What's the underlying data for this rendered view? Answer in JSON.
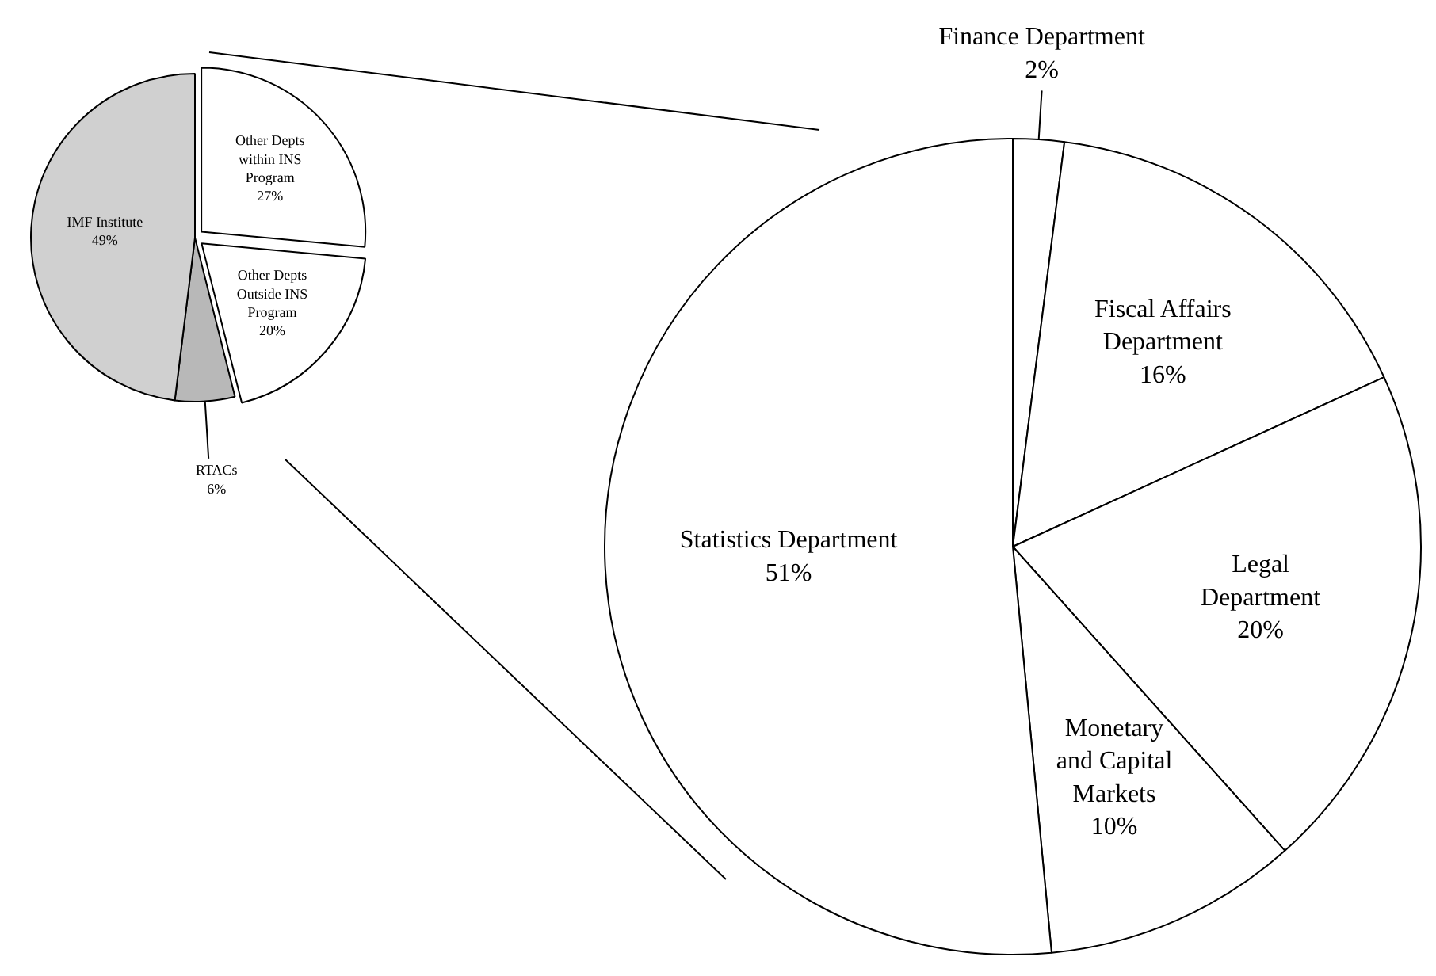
{
  "chart_data": [
    {
      "type": "pie",
      "categories": [
        "Other Depts within INS Program",
        "Other Depts Outside INS Program",
        "RTACs",
        "IMF Institute"
      ],
      "values": [
        27,
        20,
        6,
        49
      ],
      "value_labels": [
        "27%",
        "20%",
        "6%",
        "49%"
      ],
      "colors": [
        "#ffffff",
        "#ffffff",
        "#b8b8b8",
        "#d0d0d0"
      ]
    },
    {
      "type": "pie",
      "categories": [
        "Finance Department",
        "Fiscal Affairs Department",
        "Legal Department",
        "Monetary and Capital Markets",
        "Statistics Department"
      ],
      "values": [
        2,
        16,
        20,
        10,
        51
      ],
      "value_labels": [
        "2%",
        "16%",
        "20%",
        "10%",
        "51%"
      ],
      "colors": [
        "#ffffff",
        "#ffffff",
        "#ffffff",
        "#ffffff",
        "#ffffff"
      ]
    }
  ]
}
